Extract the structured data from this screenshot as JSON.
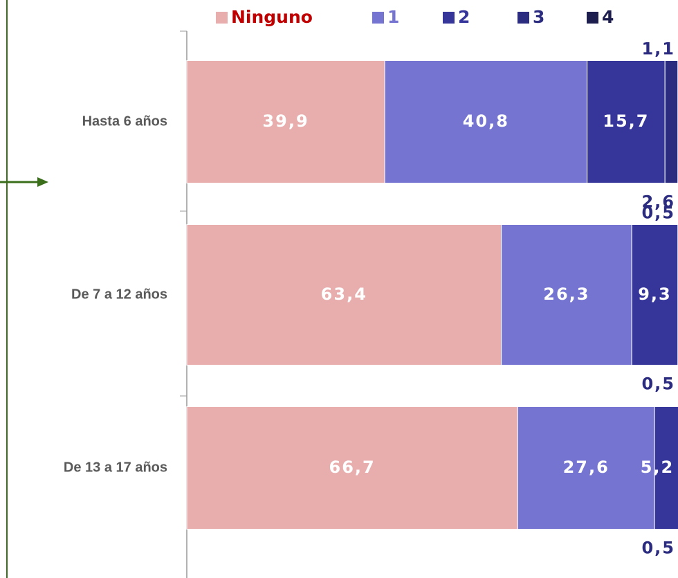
{
  "chart_data": {
    "type": "stacked-bar-horizontal",
    "categories": [
      "Hasta 6 años",
      "De 7 a 12 años",
      "De 13 a 17 años"
    ],
    "series": [
      {
        "name": "Ninguno",
        "color": "#e8adad",
        "values": [
          39.9,
          63.4,
          66.7
        ],
        "value_labels": [
          "39,9",
          "63,4",
          "66,7"
        ]
      },
      {
        "name": "1",
        "color": "#7575d1",
        "values": [
          40.8,
          26.3,
          27.6
        ],
        "value_labels": [
          "40,8",
          "26,3",
          "27,6"
        ]
      },
      {
        "name": "2",
        "color": "#35359a",
        "values": [
          15.7,
          9.3,
          5.2
        ],
        "value_labels": [
          "15,7",
          "9,3",
          "5,2"
        ]
      },
      {
        "name": "3",
        "color": "#2b2b80",
        "values": [
          2.6,
          0.5,
          0.5
        ],
        "value_labels": [
          "2,6",
          "0,5",
          "0,5"
        ]
      },
      {
        "name": "4",
        "color": "#1e1e4e",
        "values": [
          1.1,
          0.5,
          null
        ],
        "value_labels": [
          "1,1",
          "0,5",
          null
        ]
      }
    ],
    "xlim": [
      0,
      100
    ]
  }
}
